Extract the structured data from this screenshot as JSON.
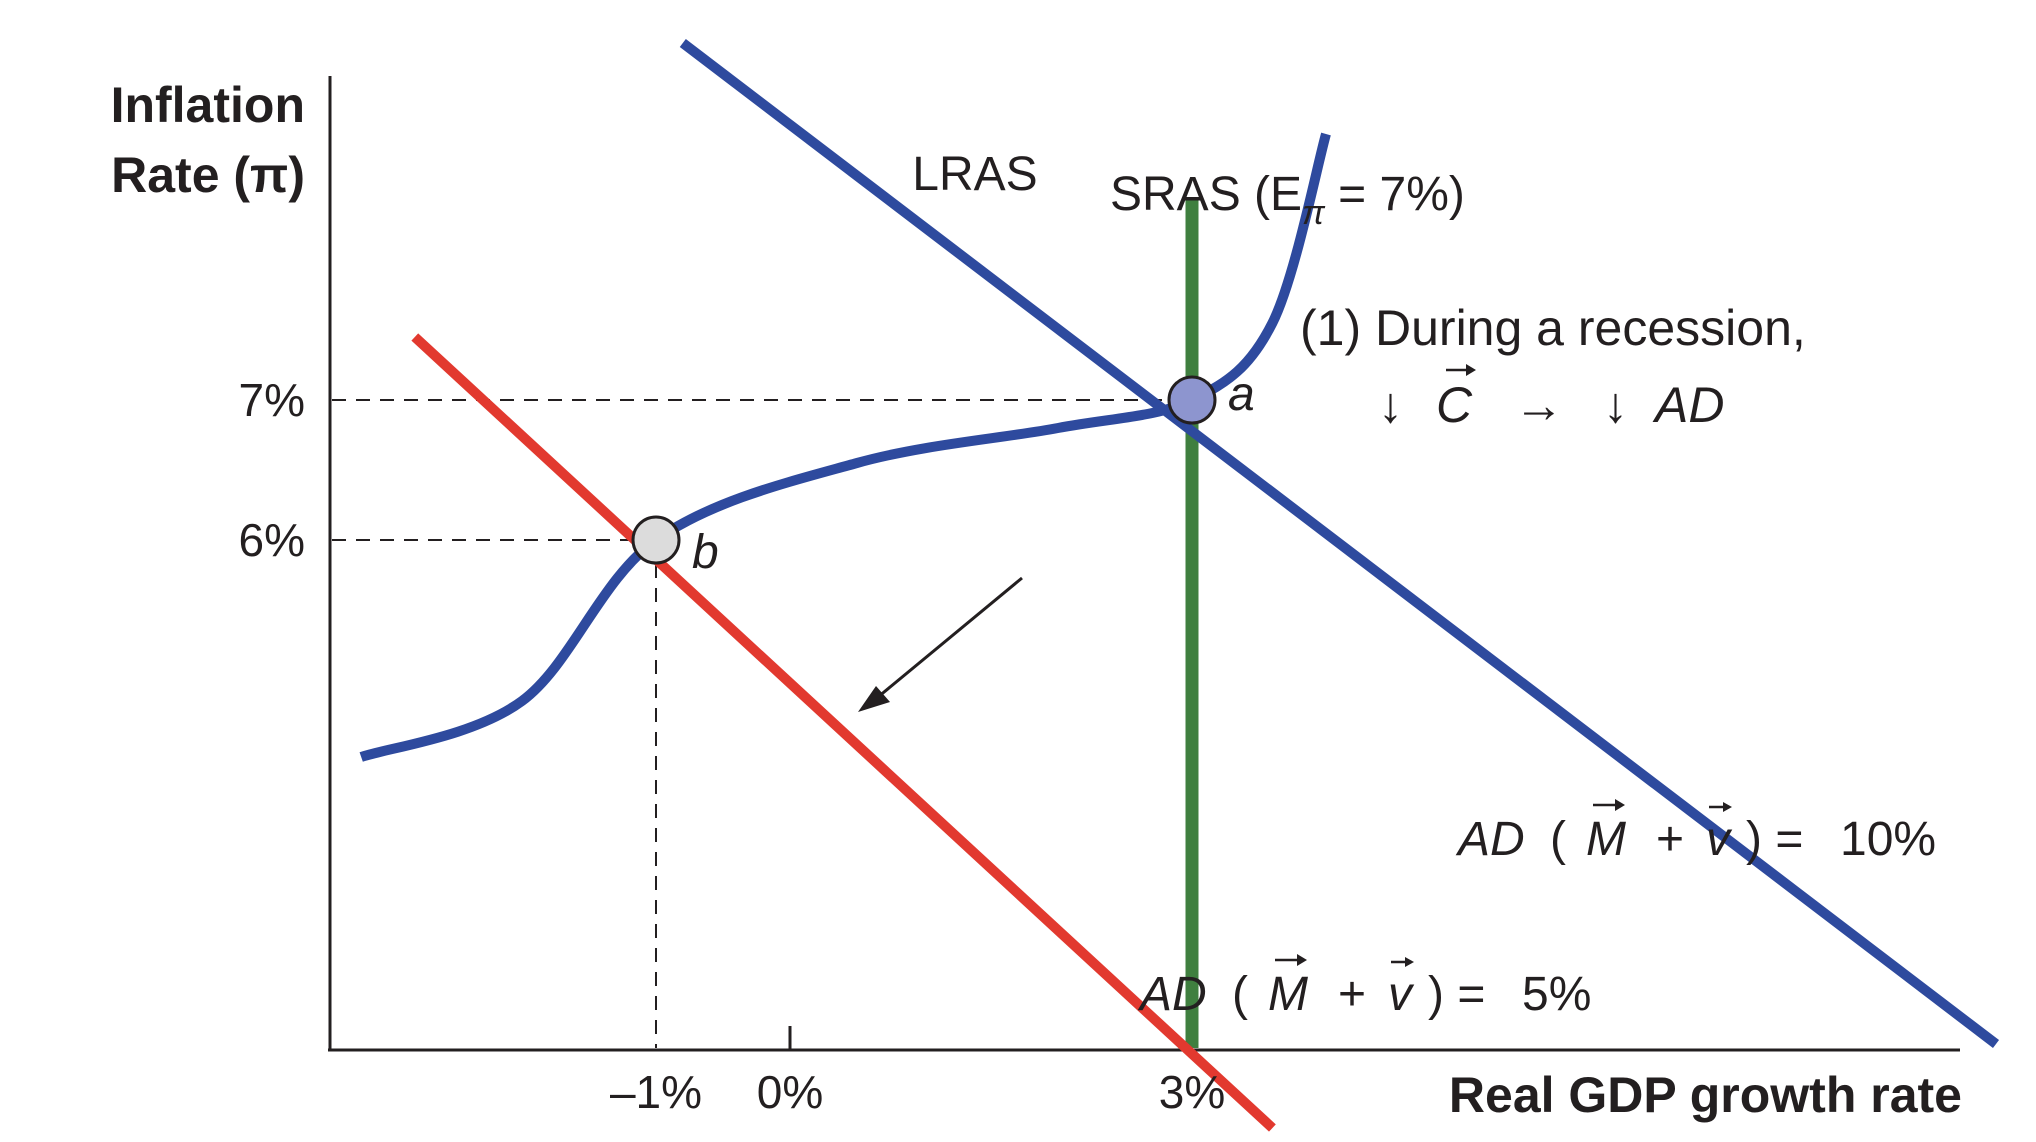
{
  "chart_data": {
    "type": "line",
    "ylabel_line1": "Inflation",
    "ylabel_line2": "Rate (π)",
    "xlabel": "Real GDP growth rate",
    "x_ticks": [
      {
        "label": "–1%",
        "value": -1
      },
      {
        "label": "0%",
        "value": 0
      },
      {
        "label": "3%",
        "value": 3
      }
    ],
    "y_ticks": [
      {
        "label": "7%",
        "value": 7
      },
      {
        "label": "6%",
        "value": 6
      }
    ],
    "lras": {
      "label": "LRAS",
      "x": 3,
      "color": "#3f7f3f"
    },
    "sras": {
      "label_prefix": "SRAS (E",
      "label_sub": "π",
      "label_suffix": " = 7%)",
      "color": "#2e4a9e",
      "points": [
        {
          "x": -3.2,
          "y": 4.45
        },
        {
          "x": -2.0,
          "y": 4.85
        },
        {
          "x": -1.0,
          "y": 6.0
        },
        {
          "x": 0.5,
          "y": 6.55
        },
        {
          "x": 2.0,
          "y": 6.8
        },
        {
          "x": 3.0,
          "y": 7.0
        },
        {
          "x": 3.6,
          "y": 7.55
        },
        {
          "x": 4.0,
          "y": 8.9
        }
      ]
    },
    "ad_high": {
      "label": "AD ( M + v ) = 10%",
      "label_parts": [
        "AD",
        "M",
        "v",
        "10%"
      ],
      "color": "#2e4a9e",
      "points": [
        {
          "x": -0.8,
          "y": 9.55
        },
        {
          "x": 9.0,
          "y": 2.4
        }
      ]
    },
    "ad_low": {
      "label": "AD ( M + v ) = 5%",
      "label_parts": [
        "AD",
        "M",
        "v",
        "5%"
      ],
      "color": "#e2392f",
      "points": [
        {
          "x": -2.8,
          "y": 7.45
        },
        {
          "x": 3.6,
          "y": 1.8
        }
      ]
    },
    "points": [
      {
        "name": "a",
        "x": 3,
        "y": 7,
        "fill": "#8d95cf"
      },
      {
        "name": "b",
        "x": -1,
        "y": 6,
        "fill": "#dcdcdc"
      }
    ],
    "annotation": {
      "line1": "(1) During a recession,",
      "line2_parts": [
        "↓",
        "C",
        "→",
        "↓",
        "AD"
      ]
    }
  }
}
